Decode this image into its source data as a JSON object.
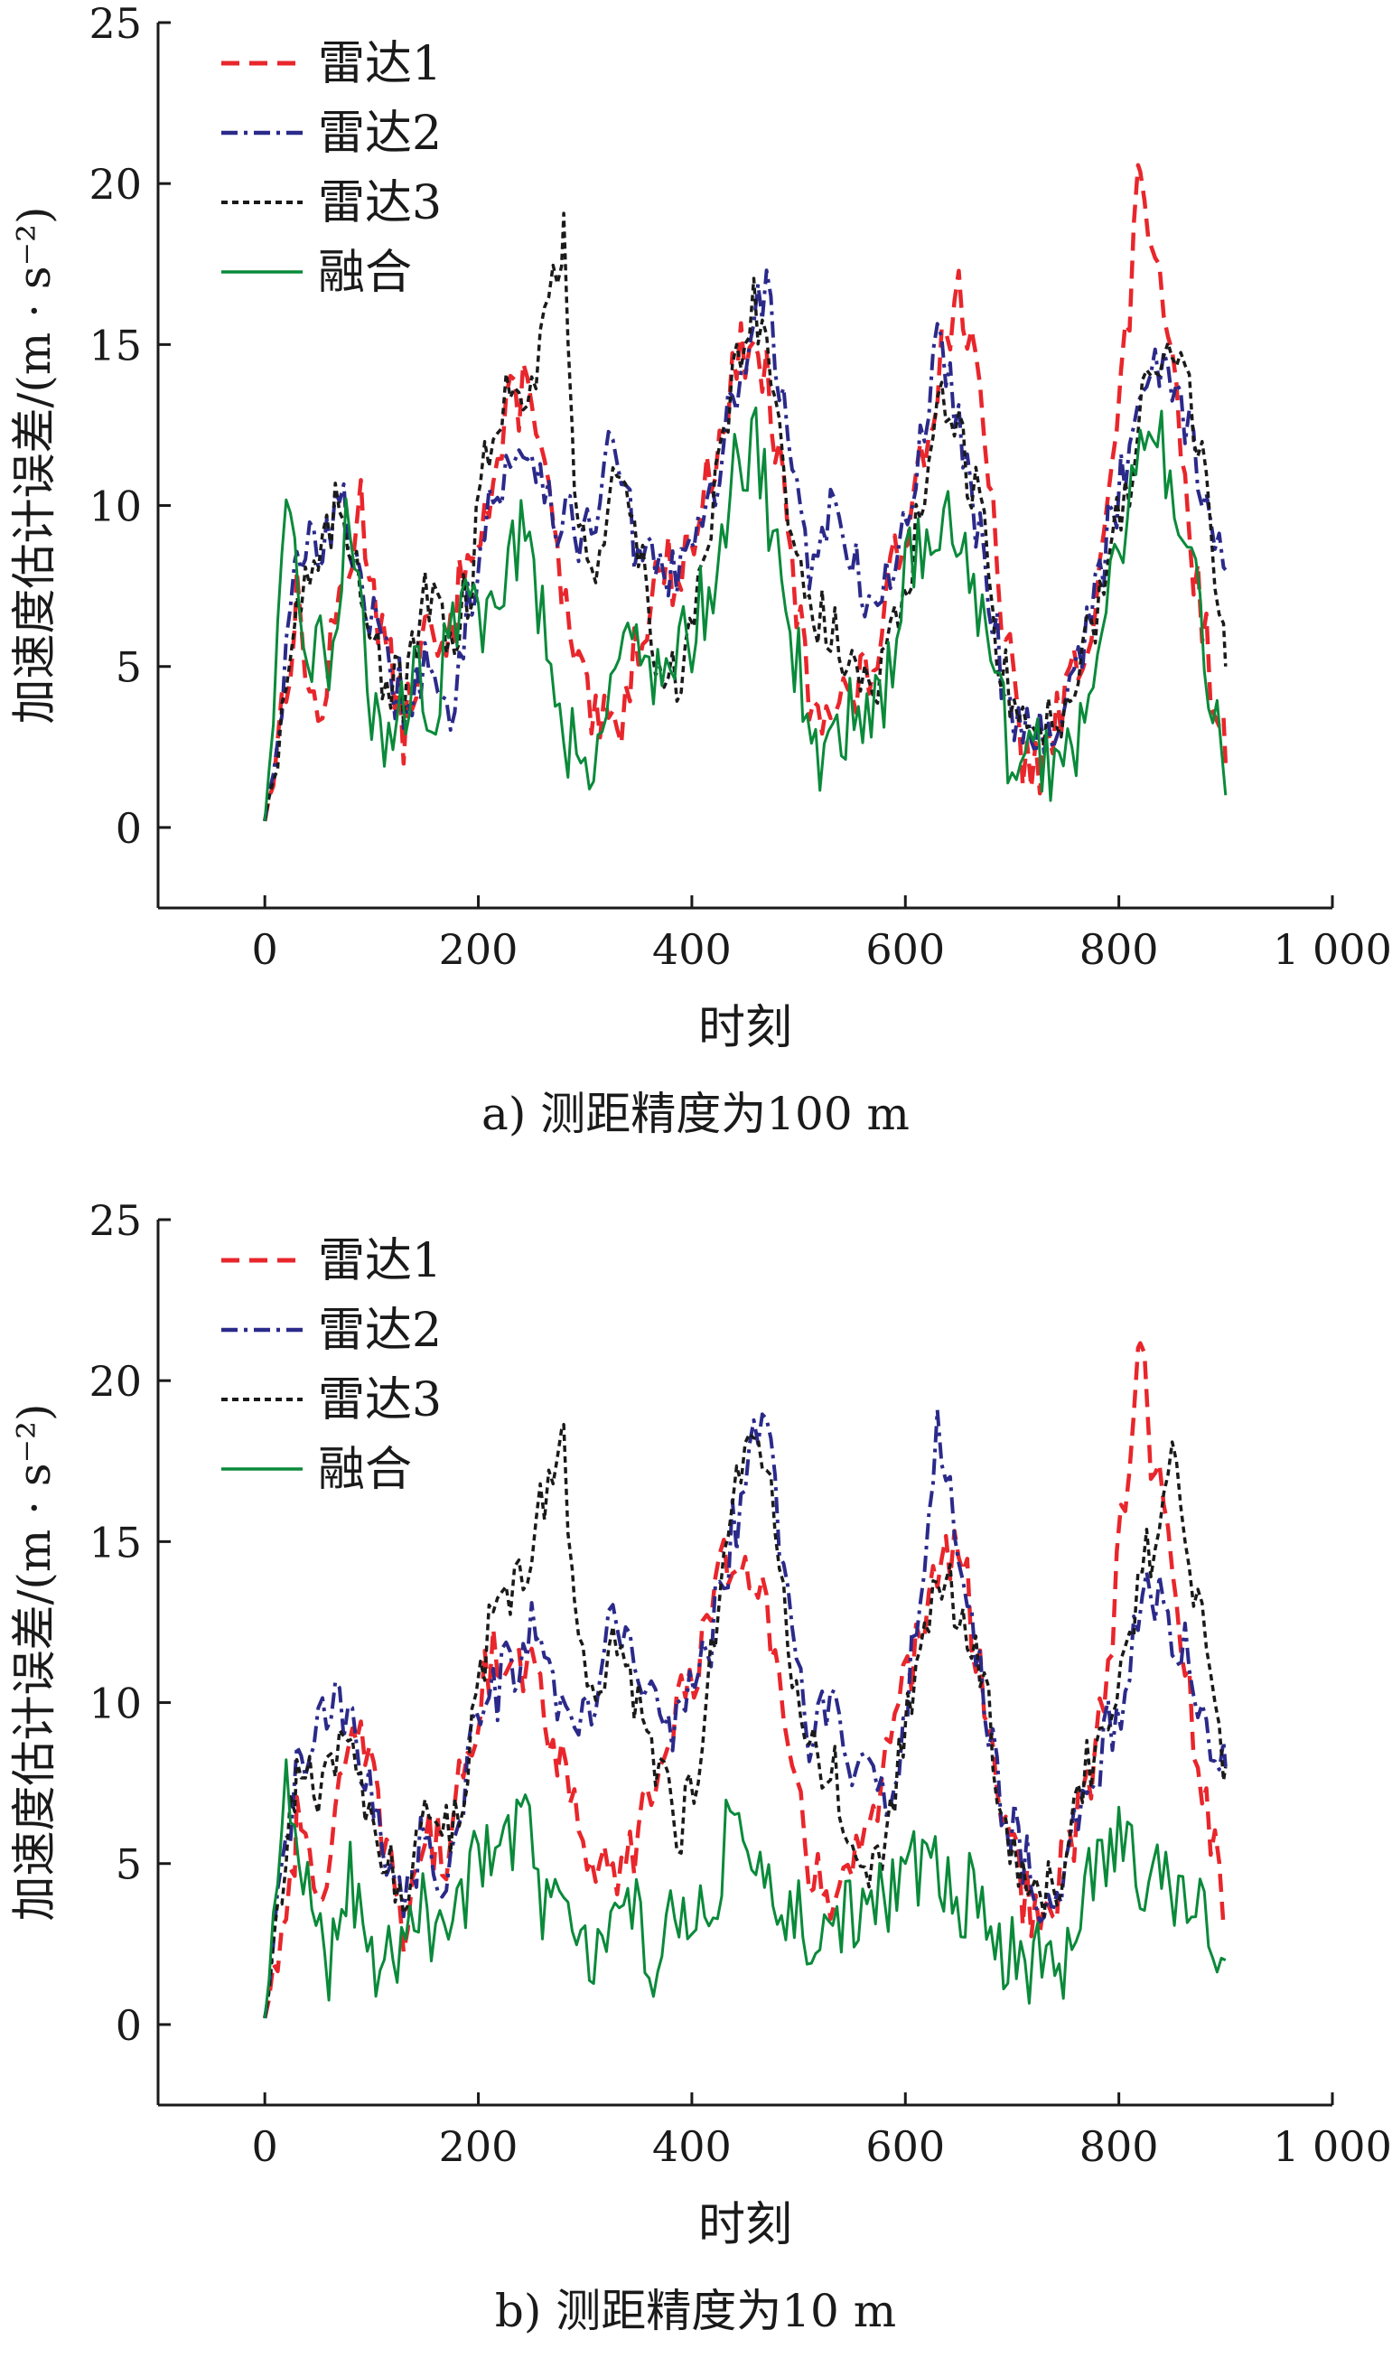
{
  "chart_data": [
    {
      "type": "line",
      "caption": "a) 测距精度为100 m",
      "xlabel": "时刻",
      "ylabel": "加速度估计误差/(m · s⁻²)",
      "xlim": [
        -100,
        1000
      ],
      "ylim": [
        -2.5,
        25
      ],
      "xticks": [
        0,
        200,
        400,
        600,
        800,
        1000
      ],
      "xtick_labels": [
        "0",
        "200",
        "400",
        "600",
        "800",
        "1 000"
      ],
      "yticks": [
        0,
        5,
        10,
        15,
        20,
        25
      ],
      "ytick_labels": [
        "0",
        "5",
        "10",
        "15",
        "20",
        "25"
      ],
      "legend_position": "top-left",
      "grid": false,
      "series": [
        {
          "name": "雷达1",
          "color": "#e8262b",
          "dash": "dashed",
          "x": [
            0,
            30,
            50,
            70,
            90,
            110,
            130,
            150,
            170,
            190,
            210,
            230,
            250,
            270,
            290,
            310,
            330,
            350,
            370,
            390,
            410,
            430,
            450,
            470,
            490,
            510,
            530,
            550,
            570,
            590,
            610,
            630,
            650,
            670,
            690,
            710,
            730,
            750,
            770,
            790,
            810,
            820,
            830,
            850,
            870,
            890,
            900
          ],
          "y": [
            0,
            7,
            3,
            7,
            10,
            6,
            3,
            6,
            5,
            9,
            10,
            13,
            14,
            9,
            5,
            3,
            3,
            6,
            8,
            8,
            10,
            13,
            15,
            14,
            9,
            4,
            4,
            4,
            5,
            8,
            11,
            14,
            17,
            13,
            7,
            2,
            2,
            4,
            6,
            10,
            16,
            21,
            18,
            14,
            8,
            4,
            2
          ]
        },
        {
          "name": "雷达2",
          "color": "#2b2a8a",
          "dash": "dashdot",
          "x": [
            0,
            30,
            50,
            70,
            90,
            110,
            130,
            150,
            170,
            190,
            210,
            230,
            250,
            270,
            290,
            310,
            330,
            350,
            370,
            390,
            410,
            430,
            450,
            470,
            490,
            510,
            530,
            550,
            570,
            590,
            610,
            630,
            650,
            670,
            690,
            710,
            730,
            750,
            770,
            790,
            810,
            830,
            850,
            870,
            890,
            900
          ],
          "y": [
            0,
            8,
            9,
            10,
            8,
            5,
            4,
            5,
            3,
            7,
            10,
            11,
            12,
            10,
            9,
            10,
            12,
            8,
            8,
            8,
            9,
            12,
            15,
            17,
            12,
            8,
            10,
            8,
            7,
            8,
            11,
            15,
            13,
            9,
            5,
            3,
            3,
            4,
            6,
            9,
            12,
            15,
            14,
            12,
            9,
            8
          ]
        },
        {
          "name": "雷达3",
          "color": "#1a1a1a",
          "dash": "dotted",
          "x": [
            0,
            30,
            50,
            70,
            90,
            110,
            130,
            150,
            170,
            190,
            210,
            230,
            250,
            270,
            280,
            290,
            310,
            330,
            350,
            370,
            390,
            410,
            430,
            450,
            470,
            490,
            510,
            530,
            550,
            570,
            590,
            610,
            630,
            650,
            670,
            690,
            710,
            730,
            750,
            770,
            790,
            810,
            830,
            850,
            870,
            890,
            900
          ],
          "y": [
            0,
            7,
            8,
            10,
            8,
            5,
            4,
            7,
            6,
            7,
            12,
            14,
            14,
            17,
            18,
            11,
            8,
            11,
            9,
            5,
            4,
            8,
            12,
            16,
            16,
            10,
            7,
            6,
            5,
            4,
            6,
            9,
            13,
            12,
            10,
            5,
            3,
            3,
            4,
            6,
            8,
            11,
            14,
            15,
            13,
            8,
            5
          ]
        },
        {
          "name": "融合",
          "color": "#0a8a3a",
          "dash": "solid",
          "x": [
            0,
            20,
            40,
            60,
            80,
            100,
            120,
            140,
            160,
            180,
            200,
            220,
            240,
            260,
            280,
            300,
            320,
            340,
            360,
            380,
            400,
            420,
            440,
            460,
            480,
            500,
            520,
            540,
            560,
            580,
            600,
            620,
            640,
            660,
            680,
            700,
            720,
            740,
            760,
            780,
            800,
            820,
            840,
            860,
            880,
            900
          ],
          "y": [
            0,
            9,
            6,
            5,
            10,
            4,
            2,
            5,
            4,
            7,
            6,
            8,
            9,
            7,
            3,
            2,
            4,
            6,
            5,
            5,
            6,
            8,
            11,
            12,
            8,
            5,
            2,
            3,
            4,
            4,
            8,
            9,
            10,
            8,
            5,
            2,
            2,
            2,
            3,
            6,
            9,
            11,
            12,
            10,
            5,
            1
          ]
        }
      ]
    },
    {
      "type": "line",
      "caption": "b) 测距精度为10 m",
      "xlabel": "时刻",
      "ylabel": "加速度估计误差/(m · s⁻²)",
      "xlim": [
        -100,
        1000
      ],
      "ylim": [
        -2.5,
        25
      ],
      "xticks": [
        0,
        200,
        400,
        600,
        800,
        1000
      ],
      "xtick_labels": [
        "0",
        "200",
        "400",
        "600",
        "800",
        "1 000"
      ],
      "yticks": [
        0,
        5,
        10,
        15,
        20,
        25
      ],
      "ytick_labels": [
        "0",
        "5",
        "10",
        "15",
        "20",
        "25"
      ],
      "legend_position": "top-left",
      "grid": false,
      "series": [
        {
          "name": "雷达1",
          "color": "#e8262b",
          "dash": "dashed",
          "x": [
            0,
            30,
            50,
            70,
            90,
            110,
            130,
            150,
            170,
            190,
            210,
            230,
            250,
            270,
            290,
            310,
            330,
            350,
            370,
            390,
            410,
            430,
            450,
            470,
            490,
            510,
            530,
            550,
            570,
            590,
            610,
            630,
            650,
            670,
            690,
            710,
            730,
            750,
            770,
            790,
            810,
            820,
            830,
            850,
            870,
            890,
            900
          ],
          "y": [
            0,
            6,
            4,
            7,
            9,
            6,
            3,
            6,
            5,
            9,
            11,
            12,
            11,
            9,
            7,
            5,
            4,
            6,
            8,
            10,
            12,
            14,
            15,
            13,
            8,
            5,
            4,
            5,
            6,
            9,
            12,
            14,
            15,
            11,
            7,
            4,
            3,
            5,
            7,
            11,
            18,
            21,
            18,
            14,
            9,
            5,
            3
          ]
        },
        {
          "name": "雷达2",
          "color": "#2b2a8a",
          "dash": "dashdot",
          "x": [
            0,
            30,
            50,
            70,
            90,
            110,
            130,
            150,
            170,
            190,
            210,
            230,
            250,
            270,
            290,
            310,
            330,
            350,
            370,
            390,
            410,
            430,
            450,
            470,
            490,
            510,
            530,
            550,
            570,
            590,
            610,
            630,
            650,
            670,
            690,
            710,
            730,
            750,
            770,
            790,
            810,
            830,
            850,
            870,
            890,
            900
          ],
          "y": [
            0,
            8,
            9,
            10,
            8,
            6,
            4,
            6,
            4,
            8,
            10,
            11,
            12,
            10,
            9,
            10,
            13,
            11,
            9,
            10,
            11,
            14,
            17,
            19,
            13,
            9,
            10,
            8,
            7,
            8,
            12,
            18,
            15,
            11,
            7,
            5,
            4,
            5,
            7,
            9,
            11,
            14,
            12,
            11,
            8,
            8
          ]
        },
        {
          "name": "雷达3",
          "color": "#1a1a1a",
          "dash": "dotted",
          "x": [
            0,
            30,
            50,
            70,
            90,
            110,
            130,
            150,
            170,
            190,
            210,
            230,
            250,
            270,
            280,
            290,
            310,
            330,
            350,
            370,
            390,
            410,
            430,
            450,
            470,
            490,
            510,
            530,
            550,
            570,
            590,
            610,
            630,
            650,
            670,
            690,
            710,
            730,
            750,
            770,
            790,
            810,
            830,
            850,
            870,
            890,
            900
          ],
          "y": [
            0,
            8,
            7,
            9,
            7,
            5,
            4,
            7,
            6,
            8,
            12,
            13,
            15,
            17,
            18,
            13,
            10,
            12,
            10,
            8,
            6,
            9,
            14,
            18,
            18,
            12,
            9,
            8,
            6,
            5,
            7,
            11,
            14,
            13,
            11,
            7,
            4,
            4,
            5,
            8,
            10,
            12,
            15,
            17,
            14,
            9,
            8
          ]
        },
        {
          "name": "融合",
          "color": "#0a8a3a",
          "dash": "solid",
          "x": [
            0,
            20,
            40,
            60,
            80,
            100,
            120,
            140,
            160,
            180,
            200,
            220,
            240,
            260,
            280,
            300,
            320,
            340,
            360,
            380,
            400,
            420,
            440,
            460,
            480,
            500,
            520,
            540,
            560,
            580,
            600,
            620,
            640,
            660,
            680,
            700,
            720,
            740,
            760,
            780,
            800,
            820,
            840,
            860,
            880,
            900
          ],
          "y": [
            0,
            7,
            4,
            2,
            5,
            2,
            2,
            4,
            3,
            4,
            5,
            5,
            7,
            4,
            3,
            2,
            3,
            4,
            2,
            3,
            4,
            4,
            7,
            5,
            3,
            4,
            2,
            3,
            4,
            4,
            5,
            5,
            4,
            4,
            3,
            2,
            2,
            1,
            3,
            5,
            6,
            5,
            4,
            4,
            3,
            2
          ]
        }
      ]
    }
  ]
}
